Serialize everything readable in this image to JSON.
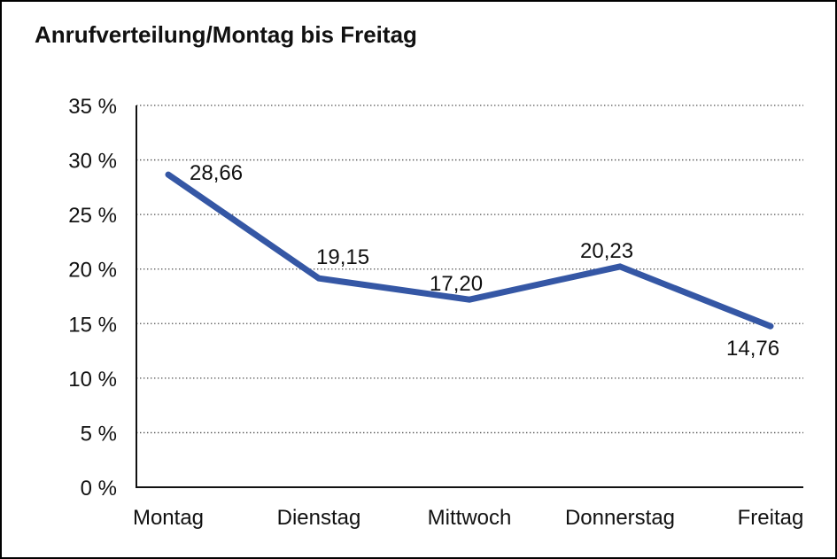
{
  "title": "Anrufverteilung/Montag bis Freitag",
  "chart_data": {
    "type": "line",
    "title": "Anrufverteilung/Montag bis Freitag",
    "categories": [
      "Montag",
      "Dienstag",
      "Mittwoch",
      "Donnerstag",
      "Freitag"
    ],
    "values": [
      28.66,
      19.15,
      17.2,
      20.23,
      14.76
    ],
    "value_labels": [
      "28,66",
      "19,15",
      "17,20",
      "20,23",
      "14,76"
    ],
    "y_tick_labels": [
      "35 %",
      "30 %",
      "25 %",
      "20 %",
      "15 %",
      "10 %",
      "5 %",
      "0 %"
    ],
    "y_tick_values": [
      35,
      30,
      25,
      20,
      15,
      10,
      5,
      0
    ],
    "ylim": [
      0,
      35
    ],
    "xlabel": "",
    "ylabel": "",
    "grid": "horizontal-dotted",
    "legend": "none",
    "line_color": "#3557A5",
    "axis_color": "#111111",
    "grid_color": "#4d4d4d",
    "text_color": "#111111"
  }
}
